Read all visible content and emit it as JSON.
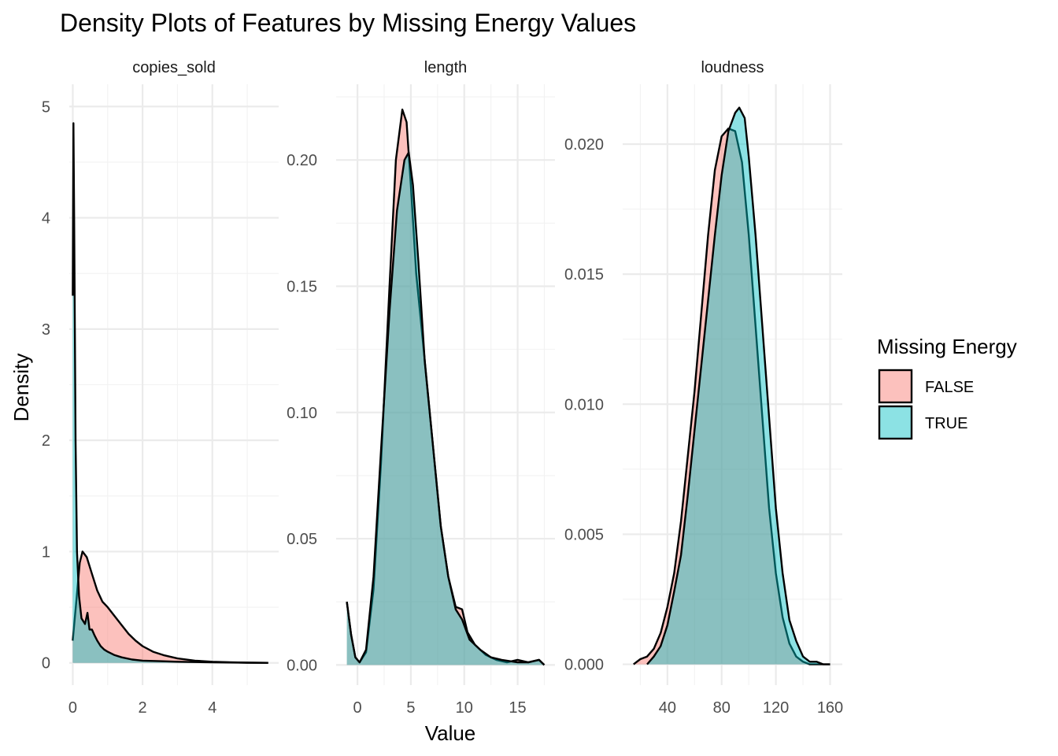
{
  "chart_data": {
    "type": "area",
    "title": "Density Plots of Features by Missing Energy Values",
    "xlabel": "Value",
    "ylabel": "Density",
    "grid": true,
    "legend": {
      "title": "Missing Energy",
      "position": "right",
      "entries": [
        "FALSE",
        "TRUE"
      ]
    },
    "colors": {
      "FALSE": "#F8766D",
      "TRUE": "#00BFC4",
      "outline": "#000000"
    },
    "panels": [
      {
        "name": "copies_sold",
        "xlim": [
          -0.1,
          5.9
        ],
        "ylim": [
          -0.2,
          5.2
        ],
        "xticks": [
          0,
          2,
          4
        ],
        "xticklabels": [
          "0",
          "2",
          "4"
        ],
        "yticks": [
          0,
          1,
          2,
          3,
          4,
          5
        ],
        "yticklabels": [
          "0",
          "1",
          "2",
          "3",
          "4",
          "5"
        ],
        "series": [
          {
            "name": "FALSE",
            "points": [
              [
                0.0,
                0.2
              ],
              [
                0.1,
                0.55
              ],
              [
                0.2,
                0.9
              ],
              [
                0.28,
                1.0
              ],
              [
                0.4,
                0.95
              ],
              [
                0.55,
                0.8
              ],
              [
                0.7,
                0.65
              ],
              [
                0.85,
                0.55
              ],
              [
                1.0,
                0.5
              ],
              [
                1.2,
                0.42
              ],
              [
                1.4,
                0.34
              ],
              [
                1.6,
                0.26
              ],
              [
                1.8,
                0.2
              ],
              [
                2.0,
                0.15
              ],
              [
                2.3,
                0.1
              ],
              [
                2.6,
                0.07
              ],
              [
                3.0,
                0.04
              ],
              [
                3.5,
                0.02
              ],
              [
                4.0,
                0.01
              ],
              [
                4.5,
                0.005
              ],
              [
                5.0,
                0.002
              ],
              [
                5.6,
                0.0
              ]
            ]
          },
          {
            "name": "TRUE",
            "points": [
              [
                0.0,
                3.3
              ],
              [
                0.02,
                4.85
              ],
              [
                0.04,
                4.0
              ],
              [
                0.08,
                2.0
              ],
              [
                0.12,
                1.0
              ],
              [
                0.18,
                0.6
              ],
              [
                0.25,
                0.4
              ],
              [
                0.35,
                0.35
              ],
              [
                0.42,
                0.45
              ],
              [
                0.48,
                0.3
              ],
              [
                0.55,
                0.3
              ],
              [
                0.62,
                0.25
              ],
              [
                0.7,
                0.2
              ],
              [
                0.8,
                0.15
              ],
              [
                0.9,
                0.12
              ],
              [
                1.0,
                0.1
              ],
              [
                1.2,
                0.07
              ],
              [
                1.4,
                0.05
              ],
              [
                1.7,
                0.03
              ],
              [
                2.0,
                0.02
              ],
              [
                2.5,
                0.015
              ],
              [
                3.0,
                0.01
              ],
              [
                4.0,
                0.005
              ],
              [
                5.0,
                0.002
              ],
              [
                5.6,
                0.0
              ]
            ]
          }
        ]
      },
      {
        "name": "length",
        "xlim": [
          -2,
          18.5
        ],
        "ylim": [
          -0.008,
          0.23
        ],
        "xticks": [
          0,
          5,
          10,
          15
        ],
        "xticklabels": [
          "0",
          "5",
          "10",
          "15"
        ],
        "yticks": [
          0.0,
          0.05,
          0.1,
          0.15,
          0.2
        ],
        "yticklabels": [
          "0.00",
          "0.05",
          "0.10",
          "0.15",
          "0.20"
        ],
        "series": [
          {
            "name": "FALSE",
            "points": [
              [
                -1.0,
                0.025
              ],
              [
                -0.6,
                0.012
              ],
              [
                -0.2,
                0.003
              ],
              [
                0.2,
                0.001
              ],
              [
                0.8,
                0.005
              ],
              [
                1.5,
                0.03
              ],
              [
                2.2,
                0.08
              ],
              [
                3.0,
                0.15
              ],
              [
                3.6,
                0.2
              ],
              [
                4.2,
                0.22
              ],
              [
                4.6,
                0.215
              ],
              [
                5.0,
                0.19
              ],
              [
                5.5,
                0.155
              ],
              [
                6.2,
                0.125
              ],
              [
                7.0,
                0.09
              ],
              [
                7.8,
                0.055
              ],
              [
                8.5,
                0.035
              ],
              [
                9.2,
                0.023
              ],
              [
                9.8,
                0.022
              ],
              [
                10.3,
                0.013
              ],
              [
                11.0,
                0.008
              ],
              [
                12.0,
                0.004
              ],
              [
                13.0,
                0.002
              ],
              [
                14.0,
                0.001
              ],
              [
                15.0,
                0.002
              ],
              [
                16.0,
                0.001
              ],
              [
                17.0,
                0.002
              ],
              [
                17.5,
                0.0
              ]
            ]
          },
          {
            "name": "TRUE",
            "points": [
              [
                -1.0,
                0.025
              ],
              [
                -0.6,
                0.012
              ],
              [
                -0.2,
                0.003
              ],
              [
                0.2,
                0.001
              ],
              [
                0.8,
                0.006
              ],
              [
                1.5,
                0.035
              ],
              [
                2.2,
                0.085
              ],
              [
                3.0,
                0.14
              ],
              [
                3.7,
                0.18
              ],
              [
                4.4,
                0.2
              ],
              [
                4.8,
                0.203
              ],
              [
                5.2,
                0.19
              ],
              [
                5.7,
                0.16
              ],
              [
                6.3,
                0.12
              ],
              [
                7.0,
                0.09
              ],
              [
                7.8,
                0.055
              ],
              [
                8.5,
                0.035
              ],
              [
                9.2,
                0.022
              ],
              [
                9.8,
                0.018
              ],
              [
                10.5,
                0.01
              ],
              [
                11.5,
                0.006
              ],
              [
                12.5,
                0.003
              ],
              [
                13.5,
                0.002
              ],
              [
                15.0,
                0.001
              ],
              [
                16.0,
                0.001
              ],
              [
                17.0,
                0.002
              ],
              [
                17.5,
                0.0
              ]
            ]
          }
        ]
      },
      {
        "name": "loudness",
        "xlim": [
          7,
          169
        ],
        "ylim": [
          -0.0008,
          0.0223
        ],
        "xticks": [
          40,
          80,
          120,
          160
        ],
        "xticklabels": [
          "40",
          "80",
          "120",
          "160"
        ],
        "yticks": [
          0.0,
          0.005,
          0.01,
          0.015,
          0.02
        ],
        "yticklabels": [
          "0.000",
          "0.005",
          "0.010",
          "0.015",
          "0.020"
        ],
        "series": [
          {
            "name": "FALSE",
            "points": [
              [
                15,
                0.0
              ],
              [
                20,
                0.0002
              ],
              [
                25,
                0.0003
              ],
              [
                30,
                0.0006
              ],
              [
                35,
                0.0012
              ],
              [
                40,
                0.0022
              ],
              [
                45,
                0.0035
              ],
              [
                50,
                0.0055
              ],
              [
                55,
                0.008
              ],
              [
                60,
                0.0105
              ],
              [
                65,
                0.0135
              ],
              [
                70,
                0.0165
              ],
              [
                75,
                0.019
              ],
              [
                80,
                0.0203
              ],
              [
                85,
                0.0206
              ],
              [
                90,
                0.0205
              ],
              [
                95,
                0.0193
              ],
              [
                100,
                0.0165
              ],
              [
                105,
                0.013
              ],
              [
                110,
                0.0095
              ],
              [
                115,
                0.006
              ],
              [
                120,
                0.0035
              ],
              [
                125,
                0.0018
              ],
              [
                130,
                0.0008
              ],
              [
                135,
                0.0003
              ],
              [
                140,
                0.0001
              ],
              [
                145,
                0.0
              ],
              [
                150,
                0.0
              ],
              [
                160,
                0.0
              ]
            ]
          },
          {
            "name": "TRUE",
            "points": [
              [
                25,
                0.0
              ],
              [
                30,
                0.0003
              ],
              [
                35,
                0.0007
              ],
              [
                40,
                0.0015
              ],
              [
                45,
                0.0028
              ],
              [
                50,
                0.0042
              ],
              [
                55,
                0.0065
              ],
              [
                60,
                0.009
              ],
              [
                65,
                0.0115
              ],
              [
                70,
                0.014
              ],
              [
                75,
                0.0165
              ],
              [
                80,
                0.0188
              ],
              [
                85,
                0.0205
              ],
              [
                90,
                0.0212
              ],
              [
                93,
                0.0214
              ],
              [
                97,
                0.021
              ],
              [
                100,
                0.0195
              ],
              [
                105,
                0.0165
              ],
              [
                110,
                0.013
              ],
              [
                115,
                0.0095
              ],
              [
                120,
                0.006
              ],
              [
                125,
                0.0035
              ],
              [
                130,
                0.0017
              ],
              [
                135,
                0.0009
              ],
              [
                140,
                0.0003
              ],
              [
                145,
                0.0001
              ],
              [
                150,
                0.0001
              ],
              [
                155,
                0.0
              ],
              [
                160,
                0.0
              ]
            ]
          }
        ]
      }
    ]
  }
}
